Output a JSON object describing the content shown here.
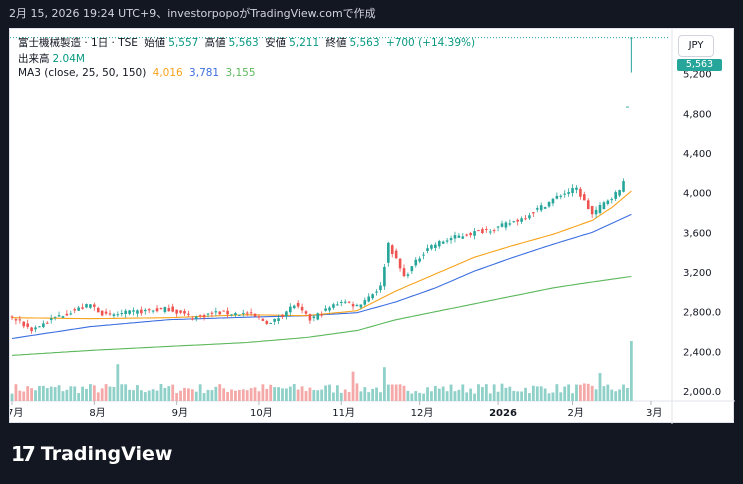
{
  "header": {
    "caption": "2月 15, 2026 19:24 UTC+9、investorpopoがTradingView.comで作成"
  },
  "legend": {
    "symbol": "富士機械製造 · 1日 · TSE",
    "open_label": "始値",
    "open": "5,557",
    "high_label": "高値",
    "high": "5,563",
    "low_label": "安値",
    "low": "5,211",
    "close_label": "終値",
    "close": "5,563",
    "change": "+700 (+14.39%)",
    "volume_label": "出来高",
    "volume": "2.04M",
    "ma_label": "MA3 (close, 25, 50, 150)",
    "ma25": "4,016",
    "ma50": "3,781",
    "ma150": "3,155"
  },
  "currency": "JPY",
  "last_price_tag": "5,563",
  "colors": {
    "up": "#26a69a",
    "down": "#ef5350",
    "ma25": "#f7a21b",
    "ma50": "#3d6fe0",
    "ma150": "#5cb85c",
    "vol_up": "#8fd0c8",
    "vol_down": "#f4a9a8"
  },
  "footer": {
    "brand": "TradingView",
    "mark": "17"
  },
  "chart_data": {
    "type": "candlestick",
    "ylim": [
      1900,
      5650
    ],
    "y_ticks": [
      "5,200",
      "4,800",
      "4,400",
      "4,000",
      "3,600",
      "3,200",
      "2,800.0",
      "2,400.0",
      "2,000.0"
    ],
    "y_tick_values": [
      5200,
      4800,
      4400,
      4000,
      3600,
      3200,
      2800,
      2400,
      2000
    ],
    "x_ticks": [
      "7月",
      "8月",
      "9月",
      "10月",
      "11月",
      "12月",
      "2026",
      "2月",
      "3月"
    ],
    "x_tick_index": [
      0,
      21,
      42,
      63,
      84,
      104,
      124,
      143,
      163
    ],
    "ma_anchors": {
      "ma25": [
        [
          0,
          2740
        ],
        [
          20,
          2730
        ],
        [
          40,
          2740
        ],
        [
          60,
          2770
        ],
        [
          75,
          2760
        ],
        [
          88,
          2810
        ],
        [
          98,
          3010
        ],
        [
          108,
          3180
        ],
        [
          118,
          3350
        ],
        [
          128,
          3470
        ],
        [
          138,
          3580
        ],
        [
          148,
          3720
        ],
        [
          153,
          3850
        ],
        [
          158,
          4016
        ]
      ],
      "ma50": [
        [
          0,
          2530
        ],
        [
          20,
          2650
        ],
        [
          40,
          2720
        ],
        [
          60,
          2745
        ],
        [
          75,
          2760
        ],
        [
          88,
          2790
        ],
        [
          98,
          2900
        ],
        [
          108,
          3040
        ],
        [
          118,
          3210
        ],
        [
          128,
          3350
        ],
        [
          138,
          3480
        ],
        [
          148,
          3600
        ],
        [
          153,
          3690
        ],
        [
          158,
          3781
        ]
      ],
      "ma150": [
        [
          0,
          2360
        ],
        [
          20,
          2410
        ],
        [
          40,
          2450
        ],
        [
          60,
          2490
        ],
        [
          75,
          2540
        ],
        [
          88,
          2610
        ],
        [
          98,
          2720
        ],
        [
          108,
          2800
        ],
        [
          118,
          2880
        ],
        [
          128,
          2960
        ],
        [
          138,
          3040
        ],
        [
          148,
          3100
        ],
        [
          158,
          3155
        ]
      ]
    },
    "close_anchors": [
      [
        0,
        2740
      ],
      [
        5,
        2620
      ],
      [
        12,
        2760
      ],
      [
        20,
        2870
      ],
      [
        24,
        2760
      ],
      [
        32,
        2800
      ],
      [
        40,
        2830
      ],
      [
        46,
        2740
      ],
      [
        52,
        2790
      ],
      [
        60,
        2780
      ],
      [
        66,
        2680
      ],
      [
        72,
        2870
      ],
      [
        76,
        2720
      ],
      [
        84,
        2910
      ],
      [
        88,
        2860
      ],
      [
        94,
        3050
      ],
      [
        96,
        3490
      ],
      [
        100,
        3150
      ],
      [
        106,
        3450
      ],
      [
        112,
        3540
      ],
      [
        118,
        3600
      ],
      [
        124,
        3650
      ],
      [
        130,
        3740
      ],
      [
        136,
        3880
      ],
      [
        140,
        3980
      ],
      [
        144,
        4040
      ],
      [
        148,
        3780
      ],
      [
        152,
        3930
      ],
      [
        155,
        4020
      ],
      [
        156,
        4140
      ],
      [
        157,
        4863
      ],
      [
        158,
        5563
      ]
    ],
    "last_candle": {
      "open": 5557,
      "high": 5563,
      "low": 5211,
      "close": 5563
    },
    "volume_max": 2.04
  }
}
